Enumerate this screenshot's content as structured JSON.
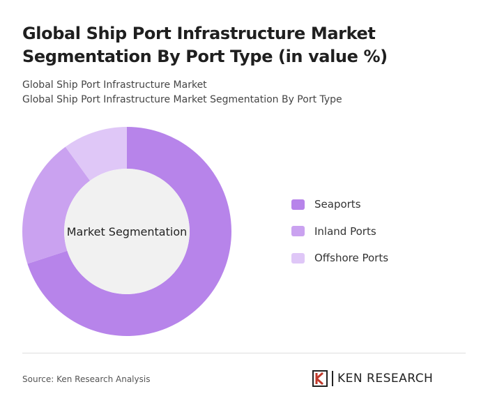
{
  "chart_data": {
    "type": "donut",
    "title": "Global Ship Port Infrastructure Market Segmentation By Port Type (in value %)",
    "subtitle": "Global Ship Port Infrastructure Market",
    "subtitle2": "Global Ship Port Infrastructure Market Segmentation By Port Type",
    "center_label": "Market Segmentation",
    "categories": [
      "Seaports",
      "Inland Ports",
      "Offshore Ports"
    ],
    "values": [
      70,
      20,
      10
    ],
    "colors": [
      "#b784ea",
      "#caa2f0",
      "#dfc7f7"
    ]
  },
  "source": "Source: Ken Research Analysis",
  "logo": "KEN RESEARCH"
}
